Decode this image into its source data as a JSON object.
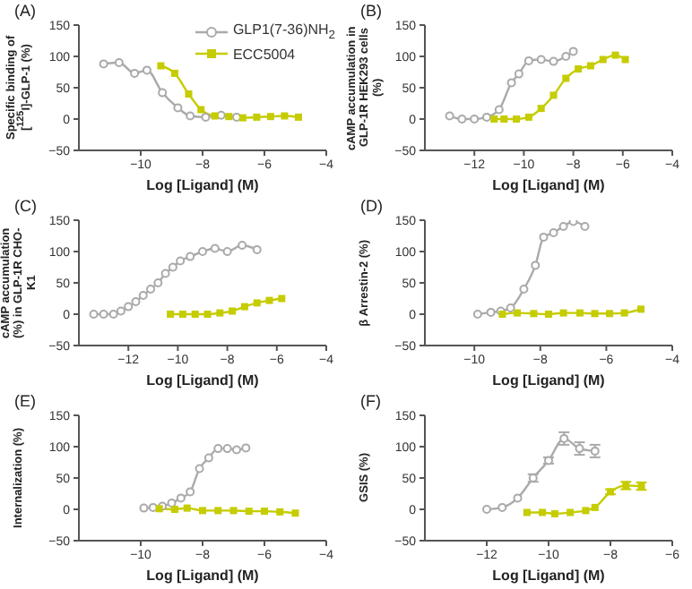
{
  "chart_data": [
    {
      "type": "line",
      "title": "(A)",
      "xlabel": "Log [Ligand] (M)",
      "ylabel": "Specific binding of [$^{125}$I]-GLP-1 (%)",
      "xlim": [
        -12,
        -4
      ],
      "xticks": [
        -10,
        -8,
        -6,
        -4
      ],
      "ylim": [
        -50,
        150
      ],
      "yticks": [
        -50,
        0,
        50,
        100,
        150
      ],
      "legend": "top right",
      "series": [
        {
          "name": "GLP1(7-36)NH$_{2}$",
          "color": "#aaaaaa",
          "marker": "circle",
          "x": [
            -11.2,
            -10.7,
            -10.2,
            -9.8,
            -9.3,
            -8.8,
            -8.4,
            -7.9,
            -7.4,
            -6.9
          ],
          "values": [
            88,
            90,
            73,
            78,
            42,
            18,
            5,
            3,
            6,
            3
          ]
        },
        {
          "name": "ECC5004",
          "color": "#c5cc00",
          "marker": "square",
          "x": [
            -9.35,
            -8.9,
            -8.45,
            -8.05,
            -7.6,
            -7.15,
            -6.7,
            -6.25,
            -5.8,
            -5.35,
            -4.9
          ],
          "values": [
            85,
            73,
            40,
            15,
            5,
            4,
            2,
            3,
            4,
            5,
            3
          ]
        }
      ]
    },
    {
      "type": "line",
      "title": "(B)",
      "xlabel": "Log [Ligand] (M)",
      "ylabel": "cAMP accumulation in GLP-1R HEK293 cells (%)",
      "xlim": [
        -14,
        -4
      ],
      "xticks": [
        -12,
        -10,
        -8,
        -6,
        -4
      ],
      "ylim": [
        -50,
        150
      ],
      "yticks": [
        -50,
        0,
        50,
        100,
        150
      ],
      "series": [
        {
          "color": "#aaaaaa",
          "marker": "circle",
          "x": [
            -13,
            -12.5,
            -12,
            -11.5,
            -11,
            -10.5,
            -10.2,
            -9.8,
            -9.3,
            -8.8,
            -8.3,
            -8
          ],
          "values": [
            5,
            0,
            0,
            3,
            15,
            58,
            72,
            93,
            95,
            92,
            100,
            108
          ]
        },
        {
          "color": "#c5cc00",
          "marker": "square",
          "x": [
            -11.2,
            -10.8,
            -10.3,
            -9.8,
            -9.3,
            -8.8,
            -8.3,
            -7.8,
            -7.3,
            -6.8,
            -6.3,
            -5.9
          ],
          "values": [
            0,
            0,
            0,
            3,
            17,
            38,
            65,
            80,
            85,
            95,
            102,
            95
          ]
        }
      ]
    },
    {
      "type": "line",
      "title": "(C)",
      "xlabel": "Log [Ligand] (M)",
      "ylabel": "cAMP accumulation (%) in GLP-1R CHO-K1",
      "xlim": [
        -14,
        -4
      ],
      "xticks": [
        -12,
        -10,
        -8,
        -6,
        -4
      ],
      "ylim": [
        -50,
        150
      ],
      "yticks": [
        -50,
        0,
        50,
        100,
        150
      ],
      "series": [
        {
          "color": "#aaaaaa",
          "marker": "circle",
          "x": [
            -13.4,
            -13,
            -12.6,
            -12.3,
            -12,
            -11.7,
            -11.4,
            -11.1,
            -10.8,
            -10.5,
            -10.2,
            -9.9,
            -9.5,
            -9,
            -8.5,
            -8,
            -7.4,
            -6.8
          ],
          "values": [
            0,
            0,
            0,
            5,
            12,
            20,
            30,
            40,
            50,
            65,
            75,
            85,
            92,
            100,
            105,
            100,
            110,
            103
          ]
        },
        {
          "color": "#c5cc00",
          "marker": "square",
          "x": [
            -10.3,
            -9.8,
            -9.3,
            -8.8,
            -8.3,
            -7.8,
            -7.3,
            -6.8,
            -6.3,
            -5.8
          ],
          "values": [
            0,
            0,
            0,
            0,
            2,
            5,
            12,
            18,
            22,
            25
          ]
        }
      ]
    },
    {
      "type": "line",
      "title": "(D)",
      "xlabel": "Log [Ligand] (M)",
      "ylabel": "β Arrestin-2 (%)",
      "xlim": [
        -11.5,
        -4
      ],
      "xticks": [
        -10,
        -8,
        -6,
        -4
      ],
      "ylim": [
        -50,
        150
      ],
      "yticks": [
        -50,
        0,
        50,
        100,
        150
      ],
      "series": [
        {
          "color": "#aaaaaa",
          "marker": "circle",
          "x": [
            -9.9,
            -9.5,
            -9.2,
            -8.9,
            -8.5,
            -8.15,
            -7.9,
            -7.6,
            -7.3,
            -7,
            -6.65
          ],
          "values": [
            0,
            3,
            5,
            10,
            40,
            78,
            123,
            130,
            140,
            148,
            140
          ]
        },
        {
          "color": "#c5cc00",
          "marker": "square",
          "x": [
            -9.15,
            -8.7,
            -8.2,
            -7.75,
            -7.3,
            -6.8,
            -6.35,
            -5.9,
            -5.45,
            -4.95
          ],
          "values": [
            0,
            2,
            1,
            0,
            2,
            2,
            1,
            1,
            2,
            8
          ]
        }
      ]
    },
    {
      "type": "line",
      "title": "(E)",
      "xlabel": "Log [Ligand] (M)",
      "ylabel": "Internalization (%)",
      "xlim": [
        -12,
        -4
      ],
      "xticks": [
        -10,
        -8,
        -6,
        -4
      ],
      "ylim": [
        -50,
        150
      ],
      "yticks": [
        -50,
        0,
        50,
        100,
        150
      ],
      "series": [
        {
          "color": "#aaaaaa",
          "marker": "circle",
          "x": [
            -9.9,
            -9.6,
            -9.3,
            -9,
            -8.7,
            -8.4,
            -8.1,
            -7.8,
            -7.5,
            -7.2,
            -6.9,
            -6.6
          ],
          "values": [
            2,
            3,
            5,
            10,
            18,
            28,
            65,
            82,
            97,
            97,
            95,
            98
          ]
        },
        {
          "color": "#c5cc00",
          "marker": "square",
          "x": [
            -9.4,
            -8.9,
            -8.5,
            -8,
            -7.5,
            -7,
            -6.5,
            -6,
            -5.5,
            -5
          ],
          "values": [
            1,
            0,
            2,
            -2,
            -2,
            -2,
            -3,
            -3,
            -4,
            -6
          ]
        }
      ]
    },
    {
      "type": "line",
      "title": "(F)",
      "xlabel": "Log [Ligand] (M)",
      "ylabel": "GSIS (%)",
      "xlim": [
        -14,
        -6
      ],
      "xticks": [
        -12,
        -10,
        -8,
        -6
      ],
      "ylim": [
        -50,
        150
      ],
      "yticks": [
        -50,
        0,
        50,
        100,
        150
      ],
      "series": [
        {
          "color": "#aaaaaa",
          "marker": "circle",
          "x": [
            -12,
            -11.5,
            -11,
            -10.5,
            -10,
            -9.5,
            -9,
            -8.5
          ],
          "values": [
            0,
            3,
            18,
            50,
            78,
            113,
            97,
            93
          ],
          "errors": [
            null,
            null,
            null,
            6,
            5,
            10,
            10,
            10
          ]
        },
        {
          "color": "#c5cc00",
          "marker": "square",
          "x": [
            -10.7,
            -10.2,
            -9.8,
            -9.3,
            -8.8,
            -8.5,
            -8,
            -7.5,
            -7
          ],
          "values": [
            -5,
            -5,
            -7,
            -5,
            -2,
            3,
            28,
            38,
            37
          ],
          "errors": [
            null,
            null,
            null,
            null,
            null,
            null,
            4,
            6,
            6
          ]
        }
      ]
    }
  ]
}
